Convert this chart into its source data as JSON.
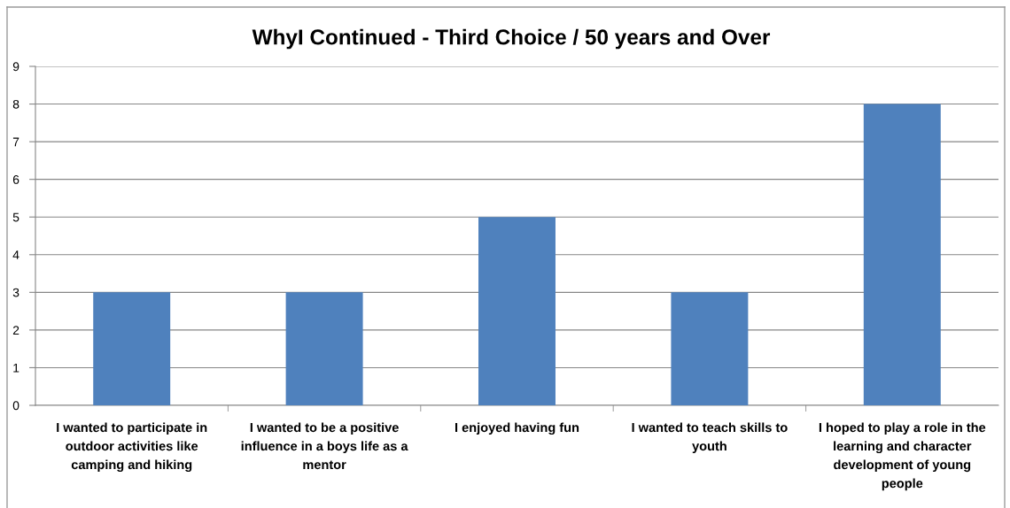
{
  "chart_data": {
    "type": "bar",
    "title": "WhyI Continued - Third Choice / 50 years and Over",
    "categories": [
      "I wanted to participate in outdoor activities like camping and hiking",
      "I wanted to be a positive influence in a boys life as a mentor",
      "I enjoyed having fun",
      "I wanted to teach skills to youth",
      "I hoped to play a role in the learning and character development of young people"
    ],
    "values": [
      3,
      3,
      5,
      3,
      8
    ],
    "color": "#4f81bd",
    "ylim": [
      0,
      9
    ],
    "yticks": [
      0,
      1,
      2,
      3,
      4,
      5,
      6,
      7,
      8,
      9
    ],
    "grid": "y"
  }
}
